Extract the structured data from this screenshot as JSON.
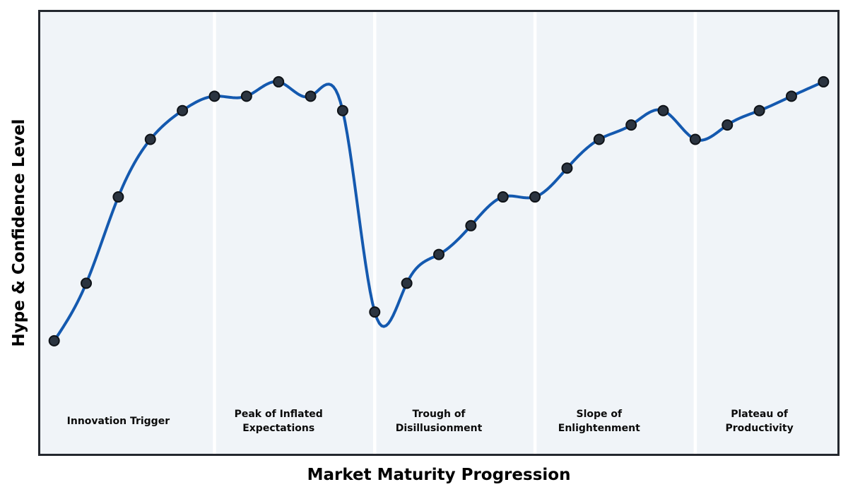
{
  "chart_data": {
    "type": "line",
    "title": "",
    "xlabel": "Market Maturity Progression",
    "ylabel": "Hype & Confidence Level",
    "x": [
      0,
      1,
      2,
      3,
      4,
      5,
      6,
      7,
      8,
      9,
      10,
      11,
      12,
      13,
      14,
      15,
      16,
      17,
      18,
      19,
      20,
      21,
      22,
      23,
      24
    ],
    "y": [
      10,
      30,
      60,
      80,
      90,
      95,
      95,
      100,
      95,
      90,
      20,
      30,
      40,
      50,
      60,
      60,
      70,
      80,
      85,
      90,
      80,
      85,
      90,
      95,
      100
    ],
    "xlim": [
      -0.5,
      24.5
    ],
    "ylim": [
      -30,
      125
    ],
    "grid": false,
    "legend": "none",
    "smoothing": "cubic-spline",
    "markers": true,
    "phase_dividers_x": [
      5,
      10,
      15,
      20
    ],
    "phases": [
      {
        "label": "Innovation Trigger",
        "center_x": 2
      },
      {
        "label": "Peak of Inflated\nExpectations",
        "center_x": 7
      },
      {
        "label": "Trough of\nDisillusionment",
        "center_x": 12
      },
      {
        "label": "Slope of\nEnlightenment",
        "center_x": 17
      },
      {
        "label": "Plateau of\nProductivity",
        "center_x": 22
      }
    ],
    "phase_label_y": -18,
    "colors": {
      "line": "#1459af",
      "marker_fill": "#2b3440",
      "marker_edge": "#0e1217",
      "plot_bg": "#f0f4f8",
      "divider": "#ffffff",
      "border": "#23272e",
      "text": "#000000",
      "figure_bg": "#ffffff"
    }
  }
}
